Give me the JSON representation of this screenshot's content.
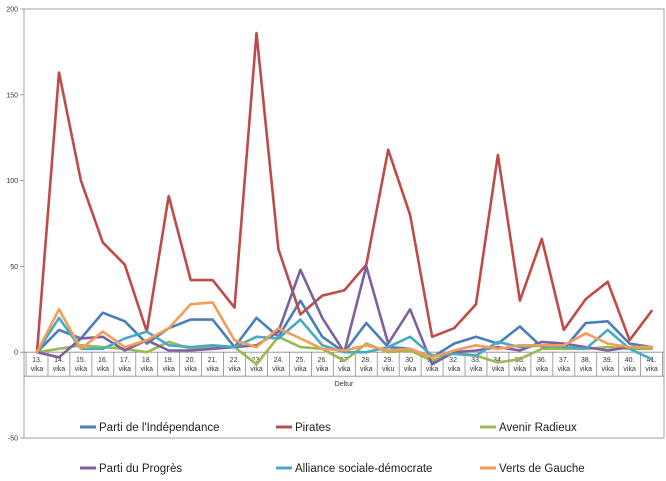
{
  "chart_data": {
    "type": "line",
    "title": "",
    "xlabel": "Deltur",
    "ylabel": "",
    "ylim": [
      -50,
      200
    ],
    "yticks": [
      -50,
      0,
      50,
      100,
      150,
      200
    ],
    "grid": false,
    "legend_position": "bottom",
    "categories": [
      [
        "13.",
        "vika"
      ],
      [
        "14.",
        "vika"
      ],
      [
        "15.",
        "vika"
      ],
      [
        "16.",
        "vika"
      ],
      [
        "17.",
        "vika"
      ],
      [
        "18.",
        "vika"
      ],
      [
        "19.",
        "vika"
      ],
      [
        "20.",
        "vika"
      ],
      [
        "21.",
        "vika"
      ],
      [
        "22.",
        "vika"
      ],
      [
        "23.",
        "vika"
      ],
      [
        "24.",
        "vika"
      ],
      [
        "25.",
        "vika"
      ],
      [
        "26.",
        "vika"
      ],
      [
        "27.",
        "vika"
      ],
      [
        "28.",
        "vika"
      ],
      [
        "29.",
        "viku"
      ],
      [
        "30.",
        "vika"
      ],
      [
        "31.",
        "vika"
      ],
      [
        "32.",
        "vika"
      ],
      [
        "33.",
        "vika"
      ],
      [
        "34.",
        "vika"
      ],
      [
        "35.",
        "vika"
      ],
      [
        "36.",
        "vika"
      ],
      [
        "37.",
        "vika"
      ],
      [
        "38.",
        "vika"
      ],
      [
        "39.",
        "vika"
      ],
      [
        "40.",
        "vika"
      ],
      [
        "41.",
        "vika"
      ]
    ],
    "series": [
      {
        "name": "Parti de l'Indépendance",
        "color": "#4a7ebb",
        "values": [
          0,
          13,
          8,
          23,
          18,
          5,
          14,
          19,
          19,
          3,
          20,
          9,
          30,
          9,
          0,
          17,
          3,
          2,
          -3,
          5,
          9,
          5,
          15,
          3,
          2,
          17,
          18,
          5,
          3
        ]
      },
      {
        "name": "Pirates",
        "color": "#be4b48",
        "values": [
          0,
          163,
          100,
          64,
          51,
          12,
          91,
          42,
          42,
          26,
          186,
          60,
          22,
          33,
          36,
          51,
          118,
          80,
          9,
          14,
          28,
          115,
          30,
          66,
          13,
          31,
          41,
          7,
          24
        ]
      },
      {
        "name": "Avenir Radieux",
        "color": "#98b954",
        "values": [
          0,
          2,
          4,
          3,
          2,
          0,
          6,
          2,
          3,
          3,
          -7,
          9,
          3,
          2,
          -5,
          5,
          0,
          1,
          -5,
          0,
          -2,
          -6,
          -4,
          2,
          2,
          2,
          3,
          2,
          2
        ]
      },
      {
        "name": "Parti du Progrès",
        "color": "#7d60a0",
        "values": [
          0,
          -3,
          8,
          9,
          1,
          7,
          1,
          1,
          2,
          3,
          4,
          12,
          48,
          20,
          0,
          50,
          5,
          25,
          -7,
          0,
          1,
          3,
          1,
          6,
          5,
          3,
          1,
          3,
          3
        ]
      },
      {
        "name": "Alliance sociale-démocrate",
        "color": "#46aac5",
        "values": [
          0,
          20,
          2,
          2,
          8,
          12,
          4,
          3,
          4,
          3,
          9,
          8,
          19,
          4,
          0,
          0,
          3,
          9,
          -2,
          -1,
          -2,
          6,
          3,
          4,
          3,
          2,
          13,
          2,
          -4
        ]
      },
      {
        "name": "Verts de Gauche",
        "color": "#f59d56",
        "values": [
          0,
          25,
          2,
          12,
          3,
          7,
          14,
          28,
          29,
          7,
          3,
          14,
          8,
          2,
          1,
          4,
          1,
          2,
          -3,
          1,
          4,
          2,
          4,
          4,
          4,
          11,
          5,
          3,
          3
        ]
      }
    ]
  }
}
